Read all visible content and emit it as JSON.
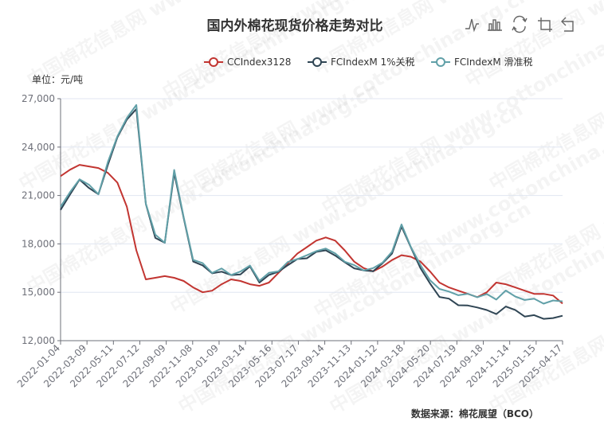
{
  "chart_data": {
    "type": "line",
    "title": "国内外棉花现货价格走势对比",
    "y_unit_label": "单位：元/吨",
    "source": "数据来源：棉花展望（BCO）",
    "watermark": "中国棉花信息网 www.cottonchina.org.cn",
    "ylim": [
      12000,
      27000
    ],
    "y_ticks": [
      12000,
      15000,
      18000,
      21000,
      24000,
      27000
    ],
    "y_tick_labels": [
      "12,000",
      "15,000",
      "18,000",
      "21,000",
      "24,000",
      "27,000"
    ],
    "x_tick_labels": [
      "2022-01-04",
      "2022-03-09",
      "2022-05-11",
      "2022-07-12",
      "2022-09-09",
      "2022-11-08",
      "2023-01-09",
      "2023-03-14",
      "2023-05-16",
      "2023-07-17",
      "2023-09-14",
      "2023-11-13",
      "2024-01-12",
      "2024-03-18",
      "2024-05-20",
      "2024-07-19",
      "2024-09-18",
      "2024-11-14",
      "2025-01-15",
      "2025-04-17"
    ],
    "legend_position": "top-right",
    "grid": true,
    "colors": {
      "series1": "#c23531",
      "series2": "#2f4554",
      "series3": "#61a0a8",
      "axis": "#6e7079",
      "grid": "#e0e6f1",
      "text": "#333333",
      "icon": "#666666"
    },
    "series": [
      {
        "name": "CCIndex3128",
        "values": [
          22200,
          22600,
          22900,
          22800,
          22700,
          22400,
          21800,
          20300,
          17600,
          15800,
          15900,
          16000,
          15900,
          15700,
          15300,
          15000,
          15100,
          15500,
          15800,
          15700,
          15500,
          15400,
          15600,
          16200,
          16800,
          17400,
          17800,
          18200,
          18400,
          18200,
          17600,
          16900,
          16500,
          16300,
          16600,
          17000,
          17300,
          17200,
          16900,
          16300,
          15600,
          15300,
          15100,
          14900,
          14700,
          15000,
          15600,
          15500,
          15300,
          15100,
          14900,
          14900,
          14800,
          14300
        ]
      },
      {
        "name": "FCIndexM 1%关税",
        "values": [
          20200,
          21000,
          22000,
          21500,
          21000,
          23000,
          24500,
          25800,
          26300,
          20500,
          18400,
          18000,
          22500,
          19500,
          17000,
          16600,
          16200,
          16300,
          16000,
          16200,
          16500,
          15700,
          16000,
          16300,
          16700,
          17000,
          17200,
          17400,
          17700,
          17200,
          16900,
          16500,
          16300,
          16400,
          16700,
          17500,
          19000,
          17800,
          16500,
          15500,
          14800,
          14500,
          14300,
          14100,
          14100,
          13900,
          13600,
          14200,
          13800,
          13600,
          13500,
          13400,
          13400,
          13500
        ]
      },
      {
        "name": "FCIndexM 滑准税",
        "values": [
          20400,
          21100,
          22100,
          21600,
          21100,
          23100,
          24600,
          25900,
          26500,
          20600,
          18500,
          18100,
          22600,
          19600,
          17100,
          16700,
          16300,
          16400,
          16100,
          16300,
          16600,
          15800,
          16100,
          16400,
          16800,
          17100,
          17300,
          17500,
          17800,
          17300,
          17000,
          16600,
          16400,
          16500,
          16800,
          17600,
          19100,
          17900,
          16600,
          15800,
          15200,
          15000,
          14900,
          14800,
          14800,
          14800,
          14600,
          15100,
          14700,
          14600,
          14500,
          14400,
          14400,
          14500
        ]
      }
    ]
  }
}
